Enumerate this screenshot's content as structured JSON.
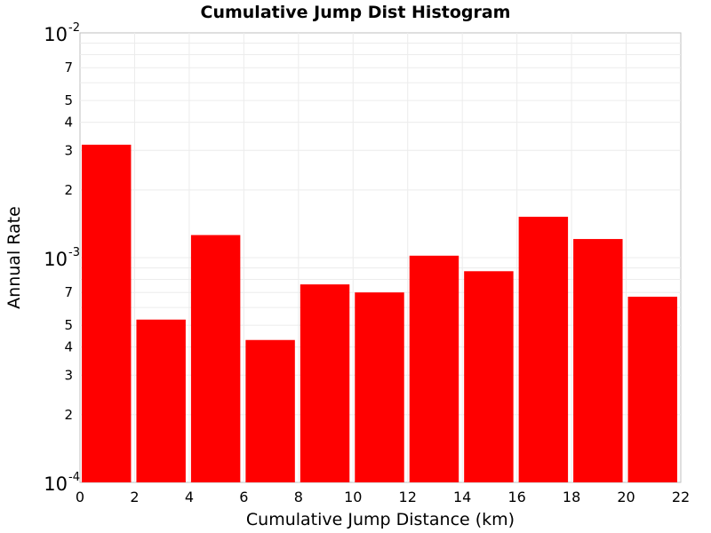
{
  "chart_data": {
    "type": "bar",
    "title": "Cumulative Jump Dist Histogram",
    "xlabel": "Cumulative Jump Distance (km)",
    "ylabel": "Annual Rate",
    "xlim": [
      0,
      22
    ],
    "ylim": [
      0.0001,
      0.01
    ],
    "yscale": "log",
    "grid": true,
    "bar_color": "#ff0000",
    "x_ticks": [
      "0",
      "2",
      "4",
      "6",
      "8",
      "10",
      "12",
      "14",
      "16",
      "18",
      "20",
      "22"
    ],
    "y_major_ticks": [
      {
        "base": "10",
        "exp": "-4",
        "value": 0.0001
      },
      {
        "base": "10",
        "exp": "-3",
        "value": 0.001
      },
      {
        "base": "10",
        "exp": "-2",
        "value": 0.01
      }
    ],
    "y_minor_labels": [
      "2",
      "3",
      "4",
      "5",
      "7"
    ],
    "bars": [
      {
        "x0": 0,
        "x1": 2,
        "value": 0.00318
      },
      {
        "x0": 2,
        "x1": 4,
        "value": 0.00053
      },
      {
        "x0": 4,
        "x1": 6,
        "value": 0.00126
      },
      {
        "x0": 6,
        "x1": 8,
        "value": 0.00043
      },
      {
        "x0": 8,
        "x1": 10,
        "value": 0.00076
      },
      {
        "x0": 10,
        "x1": 12,
        "value": 0.0007
      },
      {
        "x0": 12,
        "x1": 14,
        "value": 0.00102
      },
      {
        "x0": 14,
        "x1": 16,
        "value": 0.00087
      },
      {
        "x0": 16,
        "x1": 18,
        "value": 0.00152
      },
      {
        "x0": 18,
        "x1": 20,
        "value": 0.00121
      },
      {
        "x0": 20,
        "x1": 22,
        "value": 0.00067
      }
    ]
  }
}
